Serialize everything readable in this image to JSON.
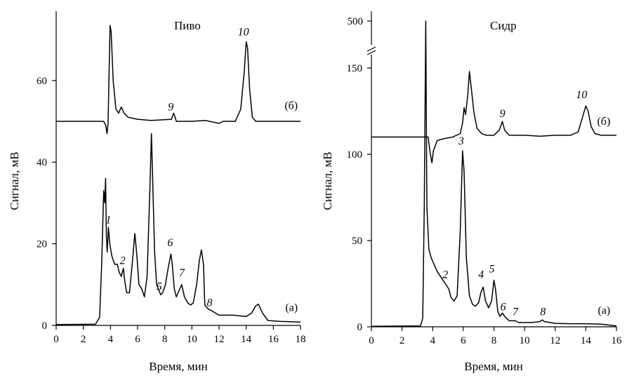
{
  "chart_data": [
    {
      "type": "line",
      "title": "Пиво",
      "xlabel": "Время, мин",
      "ylabel": "Сигнал, мВ",
      "xlim": [
        0,
        18
      ],
      "ylim": [
        0,
        75
      ],
      "xticks": [
        0,
        2,
        4,
        6,
        8,
        10,
        12,
        14,
        16,
        18
      ],
      "yticks": [
        0,
        20,
        40,
        60
      ],
      "series": [
        {
          "name": "(а)",
          "label_at": [
            17.8,
            3.5
          ],
          "points": [
            [
              0,
              0.2
            ],
            [
              2.9,
              0.3
            ],
            [
              3.2,
              2
            ],
            [
              3.35,
              15
            ],
            [
              3.5,
              33
            ],
            [
              3.58,
              30
            ],
            [
              3.64,
              36
            ],
            [
              3.7,
              22
            ],
            [
              3.76,
              18
            ],
            [
              3.85,
              24
            ],
            [
              3.95,
              20
            ],
            [
              4.1,
              17
            ],
            [
              4.3,
              15
            ],
            [
              4.5,
              15
            ],
            [
              4.65,
              13
            ],
            [
              4.8,
              12
            ],
            [
              4.95,
              14
            ],
            [
              5.05,
              11
            ],
            [
              5.2,
              8
            ],
            [
              5.4,
              8
            ],
            [
              5.6,
              15
            ],
            [
              5.8,
              22.5
            ],
            [
              5.95,
              17
            ],
            [
              6.1,
              10
            ],
            [
              6.3,
              9
            ],
            [
              6.5,
              7
            ],
            [
              6.7,
              12
            ],
            [
              6.9,
              33
            ],
            [
              7.02,
              47
            ],
            [
              7.12,
              34
            ],
            [
              7.25,
              18
            ],
            [
              7.4,
              10
            ],
            [
              7.7,
              7.5
            ],
            [
              7.85,
              8
            ],
            [
              8.05,
              10
            ],
            [
              8.25,
              14
            ],
            [
              8.45,
              17.5
            ],
            [
              8.55,
              15
            ],
            [
              8.7,
              9
            ],
            [
              8.85,
              7
            ],
            [
              9.05,
              8.5
            ],
            [
              9.25,
              10
            ],
            [
              9.45,
              7
            ],
            [
              9.7,
              5.5
            ],
            [
              9.9,
              5
            ],
            [
              10.1,
              5.5
            ],
            [
              10.35,
              10
            ],
            [
              10.55,
              16
            ],
            [
              10.7,
              18.5
            ],
            [
              10.85,
              15
            ],
            [
              10.95,
              5
            ],
            [
              11.2,
              4
            ],
            [
              11.5,
              3.5
            ],
            [
              12,
              2.5
            ],
            [
              13,
              2.5
            ],
            [
              14,
              2.2
            ],
            [
              14.4,
              3
            ],
            [
              14.7,
              4.8
            ],
            [
              14.9,
              5.2
            ],
            [
              15.2,
              3
            ],
            [
              15.6,
              1.2
            ],
            [
              16.5,
              1
            ],
            [
              18,
              0.8
            ]
          ]
        },
        {
          "name": "(б)",
          "label_at": [
            17.8,
            53
          ],
          "points": [
            [
              0,
              50
            ],
            [
              3.5,
              50
            ],
            [
              3.65,
              49
            ],
            [
              3.75,
              47
            ],
            [
              3.82,
              49.5
            ],
            [
              3.9,
              62
            ],
            [
              3.97,
              73.5
            ],
            [
              4.05,
              72
            ],
            [
              4.2,
              60
            ],
            [
              4.4,
              53
            ],
            [
              4.6,
              52
            ],
            [
              4.8,
              53.5
            ],
            [
              5,
              52
            ],
            [
              5.3,
              51
            ],
            [
              6,
              50.5
            ],
            [
              7,
              50.2
            ],
            [
              8.5,
              50.5
            ],
            [
              8.65,
              52
            ],
            [
              8.72,
              51.5
            ],
            [
              8.85,
              50
            ],
            [
              10,
              50
            ],
            [
              11,
              50.2
            ],
            [
              12,
              49.5
            ],
            [
              12.3,
              50
            ],
            [
              13.2,
              50
            ],
            [
              13.6,
              53
            ],
            [
              13.85,
              62
            ],
            [
              14,
              69.5
            ],
            [
              14.1,
              68
            ],
            [
              14.25,
              58
            ],
            [
              14.45,
              51
            ],
            [
              14.7,
              50
            ],
            [
              16,
              50
            ],
            [
              18,
              50
            ]
          ]
        }
      ],
      "annotations": [
        {
          "text": "1",
          "x": 3.95,
          "y": 24
        },
        {
          "text": "2",
          "x": 5.0,
          "y": 14
        },
        {
          "text": "5",
          "x": 7.9,
          "y": 8
        },
        {
          "text": "6",
          "x": 8.45,
          "y": 18
        },
        {
          "text": "7",
          "x": 9.25,
          "y": 11
        },
        {
          "text": "8",
          "x": 11.3,
          "y": 4
        },
        {
          "text": "9",
          "x": 8.55,
          "y": 52
        },
        {
          "text": "10",
          "x": 14.0,
          "y": 70
        }
      ],
      "axis_break": null
    },
    {
      "type": "line",
      "title": "Сидр",
      "xlabel": "Время, мин",
      "ylabel": "Сигнал, мВ",
      "xlim": [
        0,
        16
      ],
      "ylim": [
        0,
        160
      ],
      "xticks": [
        0,
        2,
        4,
        6,
        8,
        10,
        12,
        14,
        16
      ],
      "yticks": [
        0,
        50,
        100,
        150
      ],
      "ytick_labels": [
        "0",
        "50",
        "100",
        "150"
      ],
      "extra_top_tick": "500",
      "axis_break": "between 150 and 500",
      "series": [
        {
          "name": "(а)",
          "label_at": [
            15.6,
            7.5
          ],
          "points": [
            [
              0,
              0.3
            ],
            [
              3.2,
              0.5
            ],
            [
              3.35,
              5
            ],
            [
              3.45,
              70
            ],
            [
              3.55,
              500
            ],
            [
              3.62,
              70
            ],
            [
              3.75,
              45
            ],
            [
              3.9,
              40
            ],
            [
              4.1,
              36
            ],
            [
              4.3,
              32
            ],
            [
              4.6,
              28
            ],
            [
              4.9,
              24
            ],
            [
              5.05,
              22
            ],
            [
              5.2,
              17
            ],
            [
              5.4,
              15
            ],
            [
              5.6,
              18
            ],
            [
              5.8,
              55
            ],
            [
              5.95,
              102
            ],
            [
              6.05,
              90
            ],
            [
              6.2,
              40
            ],
            [
              6.4,
              18
            ],
            [
              6.6,
              13
            ],
            [
              6.8,
              12
            ],
            [
              7.0,
              14
            ],
            [
              7.15,
              20
            ],
            [
              7.3,
              23
            ],
            [
              7.45,
              15
            ],
            [
              7.65,
              11
            ],
            [
              7.85,
              15
            ],
            [
              8.0,
              27
            ],
            [
              8.1,
              22
            ],
            [
              8.25,
              9
            ],
            [
              8.4,
              6
            ],
            [
              8.55,
              8
            ],
            [
              8.7,
              6
            ],
            [
              9.0,
              3.5
            ],
            [
              9.4,
              3.5
            ],
            [
              9.6,
              2.5
            ],
            [
              10.5,
              2.5
            ],
            [
              11.0,
              3
            ],
            [
              11.15,
              4
            ],
            [
              11.3,
              3
            ],
            [
              12,
              2
            ],
            [
              13,
              1.8
            ],
            [
              14,
              1.8
            ],
            [
              15,
              1.5
            ],
            [
              16,
              0.5
            ]
          ]
        },
        {
          "name": "(б)",
          "label_at": [
            15.6,
            117
          ],
          "points": [
            [
              0,
              110
            ],
            [
              3.7,
              110
            ],
            [
              3.85,
              100
            ],
            [
              3.95,
              95
            ],
            [
              4.05,
              102
            ],
            [
              4.3,
              108
            ],
            [
              4.7,
              109
            ],
            [
              5.3,
              110
            ],
            [
              5.8,
              112
            ],
            [
              5.95,
              118
            ],
            [
              6.05,
              127
            ],
            [
              6.15,
              123
            ],
            [
              6.3,
              135
            ],
            [
              6.4,
              148
            ],
            [
              6.5,
              140
            ],
            [
              6.7,
              124
            ],
            [
              6.9,
              115
            ],
            [
              7.2,
              112
            ],
            [
              7.5,
              111
            ],
            [
              8.0,
              111
            ],
            [
              8.35,
              114
            ],
            [
              8.55,
              119
            ],
            [
              8.7,
              114
            ],
            [
              9.0,
              111
            ],
            [
              10,
              111
            ],
            [
              11,
              110.5
            ],
            [
              12,
              111
            ],
            [
              13,
              111
            ],
            [
              13.5,
              113
            ],
            [
              13.8,
              122
            ],
            [
              14.0,
              128
            ],
            [
              14.15,
              125
            ],
            [
              14.35,
              116
            ],
            [
              14.6,
              112
            ],
            [
              15,
              111
            ],
            [
              16,
              111
            ]
          ]
        }
      ],
      "annotations": [
        {
          "text": "2",
          "x": 5.0,
          "y": 25
        },
        {
          "text": "3",
          "x": 6.0,
          "y": 104
        },
        {
          "text": "4",
          "x": 7.3,
          "y": 25
        },
        {
          "text": "5",
          "x": 8.0,
          "y": 29
        },
        {
          "text": "6",
          "x": 8.6,
          "y": 8
        },
        {
          "text": "7",
          "x": 9.4,
          "y": 5
        },
        {
          "text": "8",
          "x": 11.2,
          "y": 5
        },
        {
          "text": "9",
          "x": 8.65,
          "y": 120
        },
        {
          "text": "10",
          "x": 14.0,
          "y": 130
        }
      ]
    }
  ]
}
